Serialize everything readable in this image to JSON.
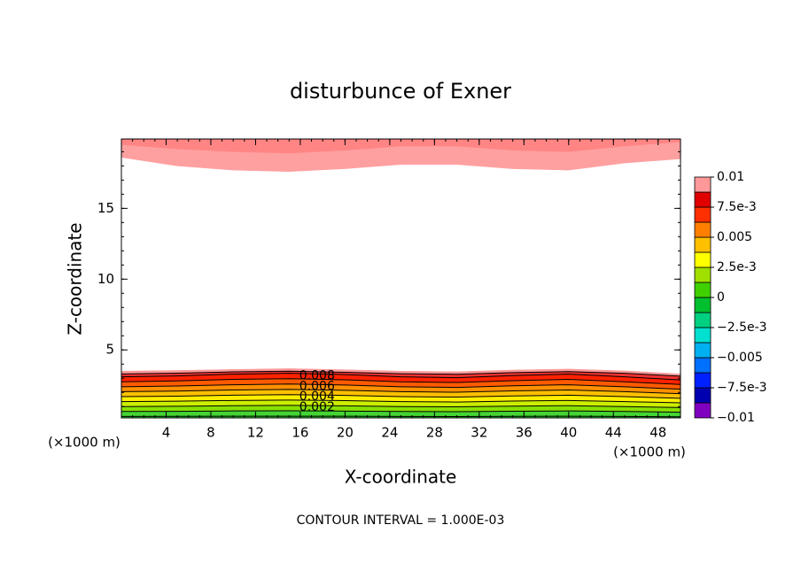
{
  "chart_data": {
    "type": "contour",
    "title": "disturbunce of Exner",
    "xlabel": "X-coordinate",
    "ylabel": "Z-coordinate",
    "x_unit": "(×1000 m)",
    "footer": "CONTOUR INTERVAL = 1.000E-03",
    "xlim": [
      0,
      50
    ],
    "ylim": [
      0.2,
      19.9
    ],
    "xticks": [
      4,
      8,
      12,
      16,
      20,
      24,
      28,
      32,
      36,
      40,
      44,
      48
    ],
    "yticks": [
      5,
      10,
      15
    ],
    "x_minor_step": 1,
    "y_minor_step": 1,
    "x": [
      0,
      5,
      10,
      15,
      20,
      25,
      30,
      35,
      40,
      45,
      50
    ],
    "contours": [
      {
        "level": 0.001,
        "color": "#22cc22",
        "line": true,
        "z": [
          0.3,
          0.31,
          0.32,
          0.32,
          0.32,
          0.3,
          0.29,
          0.31,
          0.32,
          0.3,
          0.28
        ]
      },
      {
        "level": 0.002,
        "color": "#44d433",
        "line": true,
        "label": true,
        "z": [
          0.65,
          0.66,
          0.69,
          0.7,
          0.68,
          0.65,
          0.64,
          0.67,
          0.69,
          0.65,
          0.6
        ]
      },
      {
        "level": 0.003,
        "color": "#88e000",
        "line": true,
        "z": [
          1.0,
          1.02,
          1.06,
          1.08,
          1.05,
          1.0,
          0.98,
          1.03,
          1.06,
          1.0,
          0.93
        ]
      },
      {
        "level": 0.004,
        "color": "#ccee00",
        "line": true,
        "label": true,
        "z": [
          1.35,
          1.38,
          1.43,
          1.46,
          1.42,
          1.35,
          1.32,
          1.39,
          1.43,
          1.35,
          1.26
        ]
      },
      {
        "level": 0.005,
        "color": "#ffee00",
        "line": true,
        "z": [
          1.7,
          1.73,
          1.8,
          1.84,
          1.79,
          1.7,
          1.67,
          1.75,
          1.8,
          1.7,
          1.58
        ]
      },
      {
        "level": 0.006,
        "color": "#ffc000",
        "line": true,
        "label": true,
        "z": [
          2.05,
          2.09,
          2.17,
          2.21,
          2.15,
          2.05,
          2.01,
          2.11,
          2.17,
          2.05,
          1.91
        ]
      },
      {
        "level": 0.007,
        "color": "#ff9000",
        "line": true,
        "z": [
          2.4,
          2.45,
          2.54,
          2.59,
          2.52,
          2.4,
          2.35,
          2.47,
          2.54,
          2.4,
          2.23
        ]
      },
      {
        "level": 0.008,
        "color": "#ff5a00",
        "line": true,
        "label": true,
        "z": [
          2.75,
          2.81,
          2.92,
          2.97,
          2.89,
          2.75,
          2.7,
          2.83,
          2.92,
          2.75,
          2.56
        ]
      },
      {
        "level": 0.009,
        "color": "#ff2200",
        "line": true,
        "z": [
          3.1,
          3.16,
          3.29,
          3.35,
          3.26,
          3.1,
          3.04,
          3.19,
          3.29,
          3.1,
          2.88
        ]
      },
      {
        "level": 0.01,
        "color": "#ee3030",
        "line": true,
        "z": [
          3.3,
          3.36,
          3.45,
          3.5,
          3.42,
          3.32,
          3.28,
          3.4,
          3.47,
          3.35,
          3.15
        ]
      },
      {
        "level": 0.0105,
        "color": "#ff9999",
        "line": false,
        "z": [
          3.5,
          3.55,
          3.62,
          3.68,
          3.6,
          3.5,
          3.46,
          3.58,
          3.65,
          3.52,
          3.3
        ]
      }
    ],
    "top_contours": [
      {
        "level": 0.0105,
        "color": "#ffa0a0",
        "z": [
          18.6,
          18.0,
          17.7,
          17.6,
          17.8,
          18.1,
          18.1,
          17.8,
          17.7,
          18.2,
          18.5
        ]
      },
      {
        "level": 0.011,
        "color": "#ff8585",
        "z": [
          19.5,
          19.2,
          19.0,
          18.9,
          19.1,
          19.4,
          19.4,
          19.1,
          19.0,
          19.4,
          19.7
        ]
      }
    ],
    "colorbar": {
      "lim": [
        -0.01,
        0.01
      ],
      "ticks": [
        0.01,
        {
          "value": 0.0075,
          "label": "7.5e-3"
        },
        0.005,
        {
          "value": 0.0025,
          "label": "2.5e-3"
        },
        0,
        {
          "value": -0.0025,
          "label": "−2.5e-3"
        },
        {
          "value": -0.005,
          "label": "−0.005"
        },
        {
          "value": -0.0075,
          "label": "−7.5e-3"
        },
        {
          "value": -0.01,
          "label": "−0.01"
        }
      ],
      "colors": [
        "#8000c0",
        "#0000b0",
        "#0020ff",
        "#0070ff",
        "#00b0f0",
        "#00e0d0",
        "#00d080",
        "#00c030",
        "#40d000",
        "#a0e000",
        "#ffff00",
        "#ffc000",
        "#ff8000",
        "#ff3000",
        "#e00000",
        "#ff9999"
      ]
    }
  }
}
